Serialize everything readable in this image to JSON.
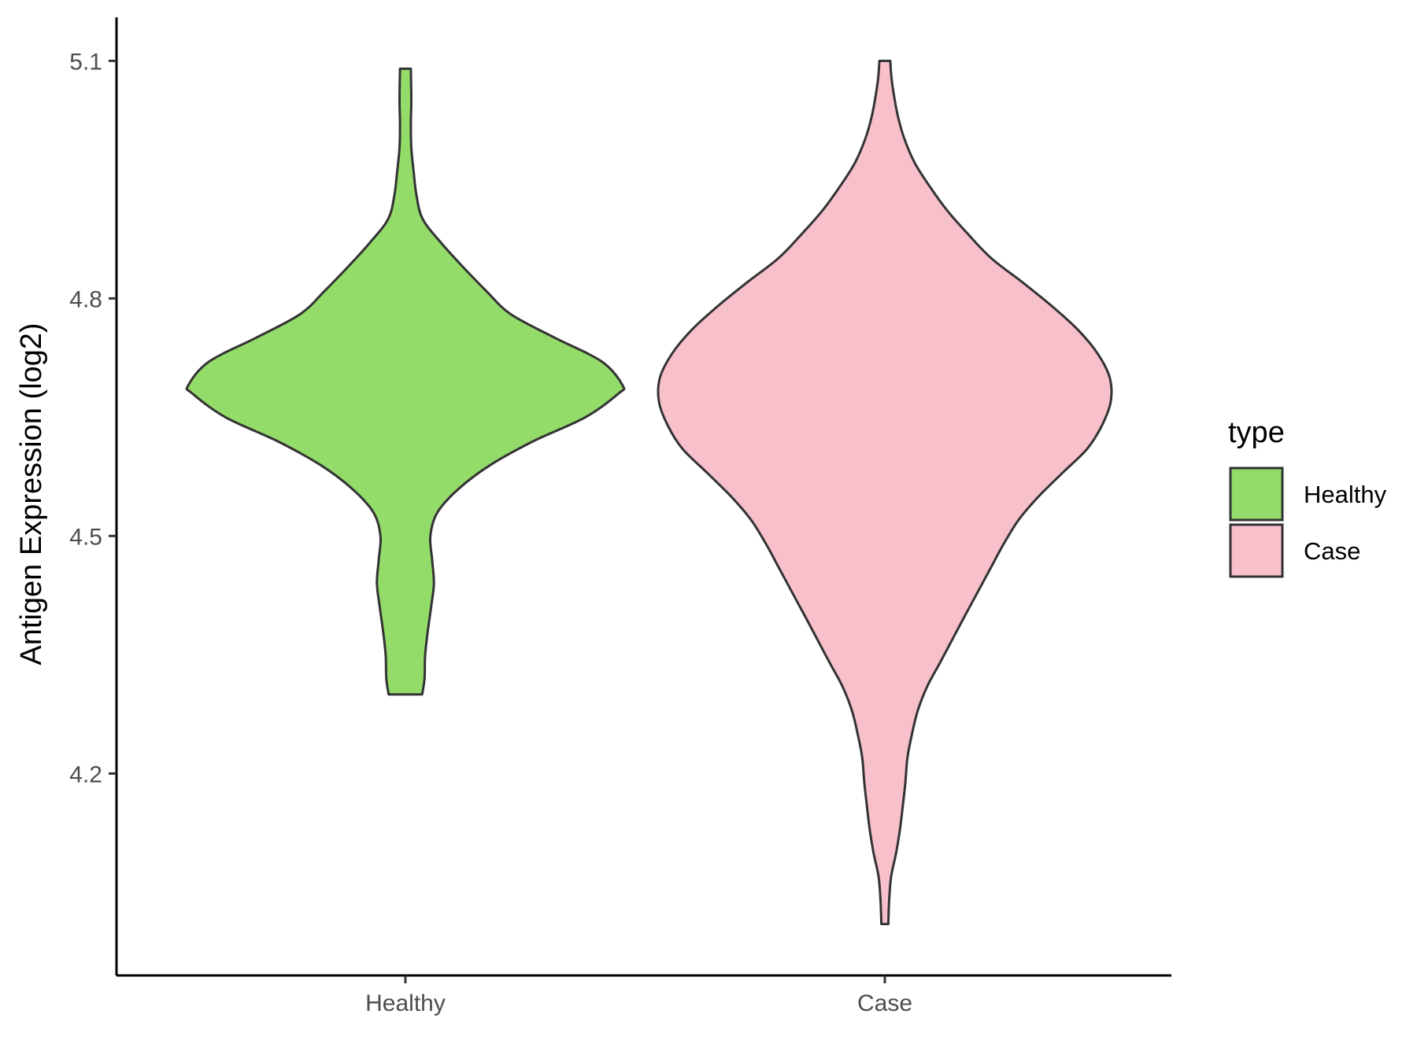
{
  "chart_data": {
    "type": "violin",
    "ylabel": "Antigen Expression (log2)",
    "xlabel": "",
    "categories": [
      "Healthy",
      "Case"
    ],
    "y_ticks": [
      "4.2",
      "4.5",
      "4.8",
      "5.1"
    ],
    "ylim": [
      3.945,
      5.155
    ],
    "grid": false,
    "legend": {
      "title": "type",
      "position": "right",
      "entries": [
        {
          "label": "Healthy",
          "color": "#93dc6a"
        },
        {
          "label": "Case",
          "color": "#f8c0cb"
        }
      ]
    },
    "series": [
      {
        "category": "Healthy",
        "color": "#93dc6a",
        "y_min": 4.3,
        "y_max": 5.09,
        "profile": [
          [
            4.3,
            0.077
          ],
          [
            4.32,
            0.088
          ],
          [
            4.35,
            0.091
          ],
          [
            4.38,
            0.103
          ],
          [
            4.41,
            0.118
          ],
          [
            4.44,
            0.131
          ],
          [
            4.47,
            0.123
          ],
          [
            4.5,
            0.115
          ],
          [
            4.53,
            0.148
          ],
          [
            4.56,
            0.247
          ],
          [
            4.59,
            0.393
          ],
          [
            4.62,
            0.591
          ],
          [
            4.65,
            0.829
          ],
          [
            4.68,
            0.981
          ],
          [
            4.69,
            1.0
          ],
          [
            4.72,
            0.905
          ],
          [
            4.75,
            0.69
          ],
          [
            4.78,
            0.485
          ],
          [
            4.81,
            0.37
          ],
          [
            4.84,
            0.264
          ],
          [
            4.87,
            0.165
          ],
          [
            4.9,
            0.08
          ],
          [
            4.93,
            0.051
          ],
          [
            4.96,
            0.038
          ],
          [
            4.99,
            0.027
          ],
          [
            5.02,
            0.025
          ],
          [
            5.05,
            0.027
          ],
          [
            5.09,
            0.025
          ]
        ]
      },
      {
        "category": "Case",
        "color": "#f8c0cb",
        "y_min": 4.01,
        "y_max": 5.1,
        "profile": [
          [
            4.01,
            0.016
          ],
          [
            4.04,
            0.02
          ],
          [
            4.07,
            0.029
          ],
          [
            4.1,
            0.052
          ],
          [
            4.13,
            0.07
          ],
          [
            4.16,
            0.083
          ],
          [
            4.19,
            0.095
          ],
          [
            4.22,
            0.104
          ],
          [
            4.25,
            0.125
          ],
          [
            4.28,
            0.152
          ],
          [
            4.31,
            0.195
          ],
          [
            4.34,
            0.254
          ],
          [
            4.37,
            0.312
          ],
          [
            4.4,
            0.37
          ],
          [
            4.43,
            0.429
          ],
          [
            4.46,
            0.488
          ],
          [
            4.49,
            0.547
          ],
          [
            4.52,
            0.615
          ],
          [
            4.55,
            0.708
          ],
          [
            4.58,
            0.819
          ],
          [
            4.61,
            0.931
          ],
          [
            4.64,
            1.0
          ],
          [
            4.67,
            1.04
          ],
          [
            4.7,
            1.035
          ],
          [
            4.73,
            0.98
          ],
          [
            4.76,
            0.89
          ],
          [
            4.79,
            0.77
          ],
          [
            4.82,
            0.635
          ],
          [
            4.85,
            0.493
          ],
          [
            4.88,
            0.387
          ],
          [
            4.91,
            0.29
          ],
          [
            4.94,
            0.21
          ],
          [
            4.97,
            0.14
          ],
          [
            5.0,
            0.092
          ],
          [
            5.03,
            0.06
          ],
          [
            5.06,
            0.04
          ],
          [
            5.08,
            0.03
          ],
          [
            5.1,
            0.025
          ]
        ]
      }
    ]
  }
}
